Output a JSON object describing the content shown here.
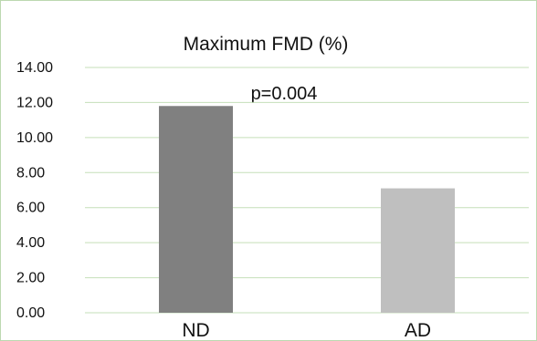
{
  "chart_data": {
    "type": "bar",
    "title": "Maximum FMD (%)",
    "annotation": "p=0.004",
    "categories": [
      "ND",
      "AD"
    ],
    "values": [
      11.8,
      7.1
    ],
    "bar_colors": [
      "#808080",
      "#bfbfbf"
    ],
    "gridline_color": "#c5dfb9",
    "ylim": [
      0,
      14
    ],
    "y_ticks": [
      "0.00",
      "2.00",
      "4.00",
      "6.00",
      "8.00",
      "10.00",
      "12.00",
      "14.00"
    ],
    "xlabel": "",
    "ylabel": "",
    "grid": true,
    "legend": "none"
  }
}
